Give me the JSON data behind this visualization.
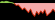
{
  "values": [
    0.05,
    0.12,
    0.08,
    0.15,
    0.1,
    0.05,
    0.02,
    -0.05,
    -0.2,
    -0.15,
    -0.35,
    -0.55,
    -0.4,
    -0.6,
    -0.8,
    -0.5,
    -0.9,
    -1.1,
    -0.7,
    -0.95,
    -0.65,
    -0.85,
    -0.55,
    -1.05,
    -0.9,
    -0.75,
    -0.5,
    -0.7
  ],
  "positive_line_color": "#88cc44",
  "negative_line_color": "#cc2200",
  "fill_positive": "#99cc55",
  "fill_negative": "#f4aaaa",
  "background": "#000000",
  "baseline": 0.0,
  "ylim_min": -1.4,
  "ylim_max": 0.25
}
